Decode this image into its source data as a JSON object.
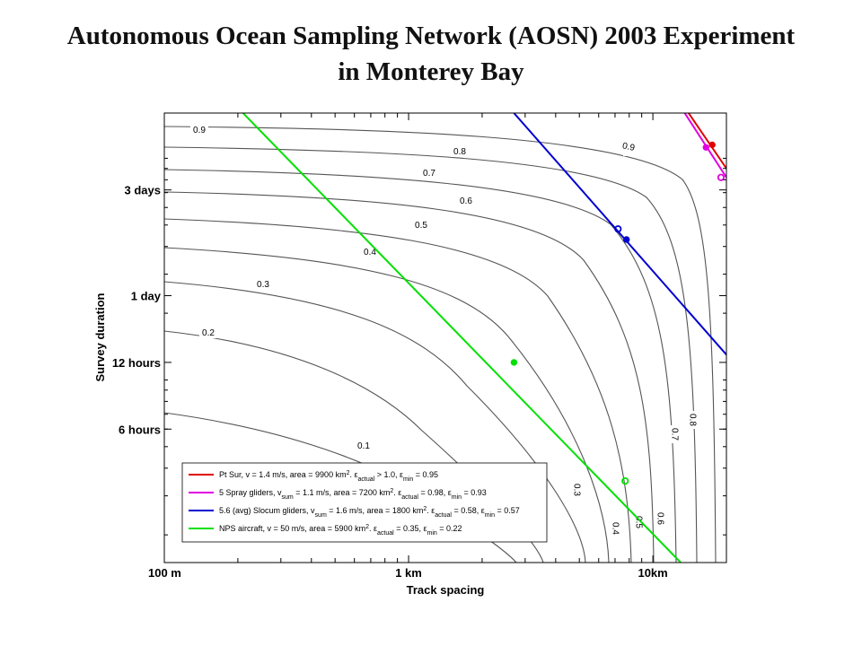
{
  "title_line1": "Autonomous Ocean Sampling Network (AOSN) 2003 Experiment",
  "title_line2": "in Monterey Bay",
  "chart_data": {
    "type": "line",
    "title": "Autonomous Ocean Sampling Network (AOSN) 2003 Experiment in Monterey Bay",
    "xlabel": "Track spacing",
    "ylabel": "Survey duration",
    "x_scale": "log",
    "y_scale": "log",
    "xlim_m": [
      100,
      20000
    ],
    "ylim_hours": [
      1.5,
      160
    ],
    "x_ticks": [
      {
        "value_m": 100,
        "label": "100 m"
      },
      {
        "value_m": 1000,
        "label": "1 km"
      },
      {
        "value_m": 10000,
        "label": "10km"
      }
    ],
    "y_ticks": [
      {
        "value_hours": 6,
        "label": "6 hours"
      },
      {
        "value_hours": 12,
        "label": "12 hours"
      },
      {
        "value_hours": 24,
        "label": "1 day"
      },
      {
        "value_hours": 72,
        "label": "3 days"
      }
    ],
    "contours": [
      {
        "level": "0.9",
        "label_left": "0.9",
        "label_right": "0.9"
      },
      {
        "level": "0.8",
        "label_left": "0.8",
        "label_right": "0.8"
      },
      {
        "level": "0.7",
        "label_left": "0.7",
        "label_right": "0.7"
      },
      {
        "level": "0.6",
        "label_left": "0.6",
        "label_right": "0.6"
      },
      {
        "level": "0.5",
        "label_left": "0.5",
        "label_right": "0.5"
      },
      {
        "level": "0.4",
        "label_left": "0.4",
        "label_right": "0.4"
      },
      {
        "level": "0.3",
        "label_left": "0.3",
        "label_right": "0.3"
      },
      {
        "level": "0.2",
        "label_left": "0.2",
        "label_right": ""
      },
      {
        "level": "0.1",
        "label_left": "0.1",
        "label_right": ""
      }
    ],
    "series": [
      {
        "name": "Pt Sur",
        "legend": {
          "pre": "Pt Sur, v = 1.4 m/s, area = 9900 km",
          "sup": "2",
          "mid": ". ε",
          "sub1": "actual",
          "mid2": " > 1.0, ε",
          "sub2": "min",
          "post": " = 0.95"
        },
        "color": "#e00000",
        "line": [
          [
            14000,
            160
          ],
          [
            20000,
            90
          ]
        ],
        "markers": [
          {
            "x_m": 17500,
            "y_hours": 115,
            "shape": "dot"
          }
        ]
      },
      {
        "name": "5 Spray gliders",
        "legend": {
          "pre": "5 Spray gliders, v",
          "sub0": "sum",
          "pre2": " = 1.1 m/s, area = 7200 km",
          "sup": "2",
          "mid": ". ε",
          "sub1": "actual",
          "mid2": " = 0.98, ε",
          "sub2": "min",
          "post": " = 0.93"
        },
        "color": "#e000e0",
        "line": [
          [
            13500,
            160
          ],
          [
            20000,
            82
          ]
        ],
        "markers": [
          {
            "x_m": 16500,
            "y_hours": 112,
            "shape": "dot"
          },
          {
            "x_m": 19000,
            "y_hours": 82,
            "shape": "circle"
          }
        ]
      },
      {
        "name": "5.6 (avg) Slocum gliders",
        "legend": {
          "pre": "5.6 (avg) Slocum gliders, v",
          "sub0": "sum",
          "pre2": " = 1.6 m/s, area = 1800 km",
          "sup": "2",
          "mid": ". ε",
          "sub1": "actual",
          "mid2": " = 0.58, ε",
          "sub2": "min",
          "post": " = 0.57"
        },
        "color": "#0000d0",
        "line": [
          [
            2700,
            160
          ],
          [
            20000,
            13
          ]
        ],
        "markers": [
          {
            "x_m": 7200,
            "y_hours": 48,
            "shape": "circle"
          },
          {
            "x_m": 7800,
            "y_hours": 43,
            "shape": "dot"
          }
        ]
      },
      {
        "name": "NPS aircraft",
        "legend": {
          "pre": "NPS aircraft, v = 50 m/s, area = 5900 km",
          "sup": "2",
          "mid": ". ε",
          "sub1": "actual",
          "mid2": " = 0.35, ε",
          "sub2": "min",
          "post": " = 0.22"
        },
        "color": "#00e000",
        "line": [
          [
            210,
            160
          ],
          [
            13000,
            1.5
          ]
        ],
        "markers": [
          {
            "x_m": 2700,
            "y_hours": 12,
            "shape": "dot"
          },
          {
            "x_m": 7700,
            "y_hours": 3.5,
            "shape": "circle"
          }
        ]
      }
    ],
    "grid": false,
    "legend_position": "bottom-left"
  }
}
